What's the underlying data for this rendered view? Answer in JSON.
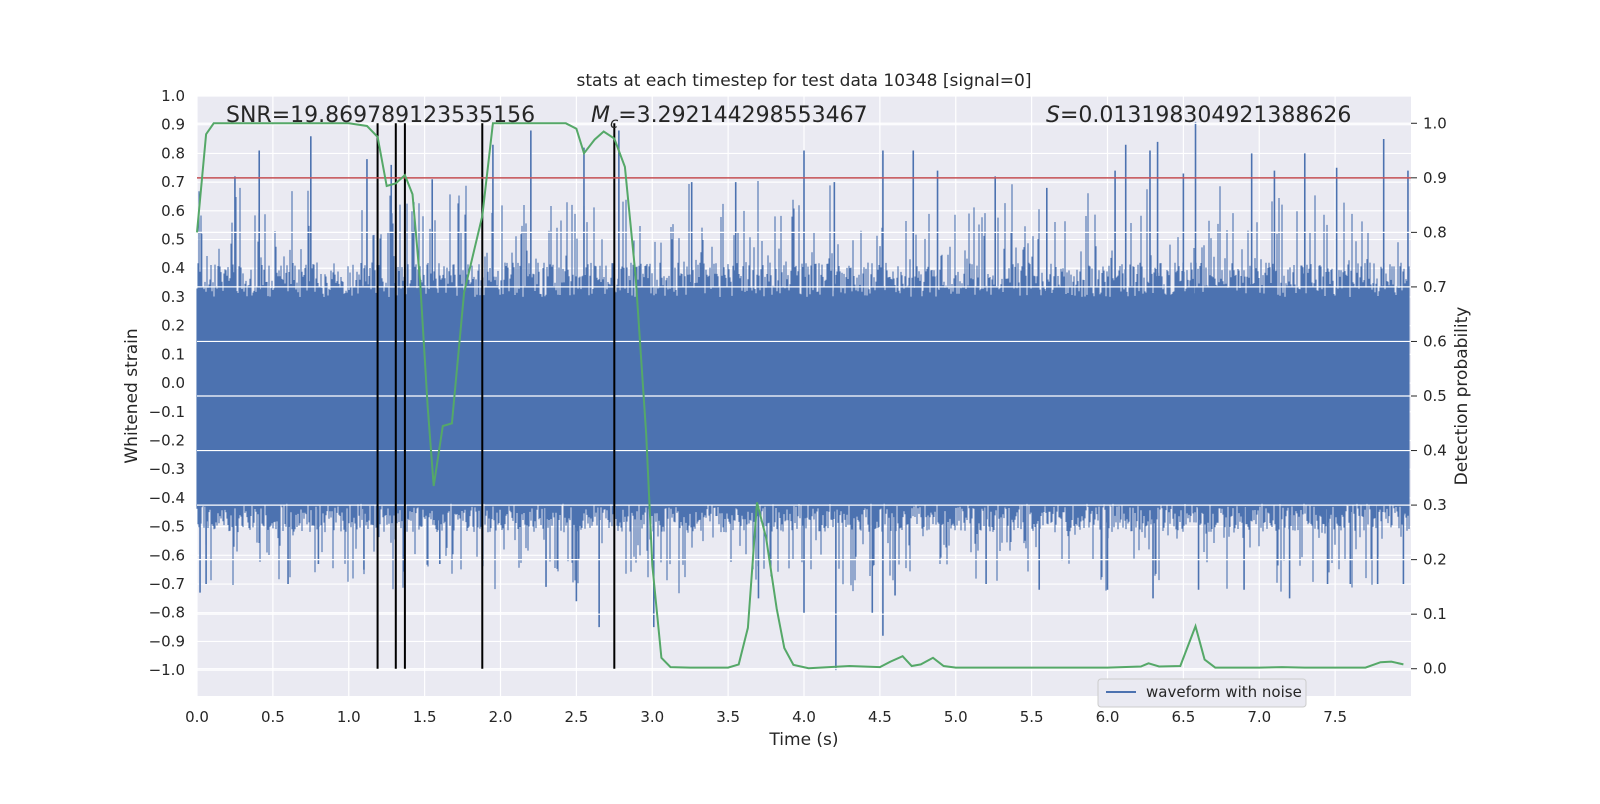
{
  "chart_data": {
    "type": "line",
    "title": "stats at each timestep for test data 10348 [signal=0]",
    "xlabel": "Time (s)",
    "ylabel_left": "Whitened strain",
    "ylabel_right": "Detection probability",
    "xlim": [
      0.0,
      8.0
    ],
    "ylim_left": [
      -1.09,
      1.0
    ],
    "ylim_right": [
      -0.05,
      1.05
    ],
    "x_ticks": [
      0.0,
      0.5,
      1.0,
      1.5,
      2.0,
      2.5,
      3.0,
      3.5,
      4.0,
      4.5,
      5.0,
      5.5,
      6.0,
      6.5,
      7.0,
      7.5
    ],
    "x_tick_labels": [
      "0.0",
      "0.5",
      "1.0",
      "1.5",
      "2.0",
      "2.5",
      "3.0",
      "3.5",
      "4.0",
      "4.5",
      "5.0",
      "5.5",
      "6.0",
      "6.5",
      "7.0",
      "7.5"
    ],
    "y_left_ticks": [
      1.0,
      0.9,
      0.8,
      0.7,
      0.6,
      0.5,
      0.4,
      0.3,
      0.2,
      0.1,
      0.0,
      -0.1,
      -0.2,
      -0.3,
      -0.4,
      -0.5,
      -0.6,
      -0.7,
      -0.8,
      -0.9,
      -1.0
    ],
    "y_left_tick_labels": [
      "1.0",
      "0.9",
      "0.8",
      "0.7",
      "0.6",
      "0.5",
      "0.4",
      "0.3",
      "0.2",
      "0.1",
      "0.0",
      "−0.1",
      "−0.2",
      "−0.3",
      "−0.4",
      "−0.5",
      "−0.6",
      "−0.7",
      "−0.8",
      "−0.9",
      "−1.0"
    ],
    "y_right_ticks": [
      1.0,
      0.9,
      0.8,
      0.7,
      0.6,
      0.5,
      0.4,
      0.3,
      0.2,
      0.1,
      0.0
    ],
    "y_right_tick_labels": [
      "1.0",
      "0.9",
      "0.8",
      "0.7",
      "0.6",
      "0.5",
      "0.4",
      "0.3",
      "0.2",
      "0.1",
      "0.0"
    ],
    "annotations": {
      "snr": "SNR=19.869789123535156",
      "mc_symbol": "M",
      "mc_subscript": "c",
      "mc_value": "=3.292144298553467",
      "s_symbol": "S",
      "s_value": "=0.013198304921388626"
    },
    "threshold": {
      "value": 0.9,
      "axis": "right",
      "color": "#c44e52"
    },
    "vertical_lines_x": [
      1.19,
      1.31,
      1.37,
      1.88,
      2.75
    ],
    "series": [
      {
        "name": "waveform with noise",
        "axis": "left",
        "color": "#4c72b0",
        "style": "dense noise band",
        "t_start": 0.0,
        "t_end": 7.99,
        "band_upper_typical": 0.3,
        "band_lower_typical": -0.42,
        "upper_spikes": [
          [
            0.03,
            0.52
          ],
          [
            0.25,
            0.72
          ],
          [
            0.41,
            0.81
          ],
          [
            0.75,
            0.86
          ],
          [
            1.12,
            0.78
          ],
          [
            1.28,
            0.76
          ],
          [
            1.55,
            0.71
          ],
          [
            1.95,
            0.83
          ],
          [
            2.2,
            0.88
          ],
          [
            2.55,
            0.82
          ],
          [
            2.78,
            0.88
          ],
          [
            3.26,
            0.7
          ],
          [
            3.55,
            0.7
          ],
          [
            4.0,
            0.81
          ],
          [
            4.2,
            0.7
          ],
          [
            4.52,
            0.81
          ],
          [
            4.72,
            0.81
          ],
          [
            4.88,
            0.74
          ],
          [
            5.26,
            0.72
          ],
          [
            5.6,
            0.68
          ],
          [
            6.05,
            0.74
          ],
          [
            6.12,
            0.83
          ],
          [
            6.28,
            0.81
          ],
          [
            6.33,
            0.84
          ],
          [
            6.5,
            0.73
          ],
          [
            6.58,
            0.91
          ],
          [
            6.95,
            0.8
          ],
          [
            7.1,
            0.74
          ],
          [
            7.3,
            0.8
          ],
          [
            7.51,
            0.75
          ],
          [
            7.82,
            0.85
          ],
          [
            7.98,
            0.74
          ]
        ],
        "lower_spikes": [
          [
            0.02,
            -0.73
          ],
          [
            0.06,
            -0.7
          ],
          [
            0.6,
            -0.7
          ],
          [
            0.8,
            -0.63
          ],
          [
            1.1,
            -0.65
          ],
          [
            1.6,
            -0.63
          ],
          [
            2.3,
            -0.71
          ],
          [
            2.5,
            -0.76
          ],
          [
            2.65,
            -0.85
          ],
          [
            3.01,
            -0.85
          ],
          [
            3.7,
            -0.75
          ],
          [
            4.0,
            -0.8
          ],
          [
            4.21,
            -1.0
          ],
          [
            4.45,
            -0.8
          ],
          [
            4.52,
            -0.88
          ],
          [
            4.6,
            -0.74
          ],
          [
            5.2,
            -0.7
          ],
          [
            5.55,
            -0.72
          ],
          [
            6.0,
            -0.72
          ],
          [
            6.3,
            -0.75
          ],
          [
            6.6,
            -0.72
          ],
          [
            6.9,
            -0.72
          ],
          [
            7.2,
            -0.75
          ],
          [
            7.45,
            -0.7
          ],
          [
            7.6,
            -0.7
          ],
          [
            7.78,
            -0.7
          ],
          [
            7.95,
            -0.7
          ]
        ]
      },
      {
        "name": "detection probability",
        "axis": "right",
        "color": "#55a868",
        "points": [
          [
            0.0,
            0.8
          ],
          [
            0.06,
            0.98
          ],
          [
            0.11,
            1.0
          ],
          [
            0.5,
            1.0
          ],
          [
            1.0,
            1.0
          ],
          [
            1.12,
            0.995
          ],
          [
            1.19,
            0.975
          ],
          [
            1.25,
            0.885
          ],
          [
            1.31,
            0.89
          ],
          [
            1.37,
            0.905
          ],
          [
            1.42,
            0.87
          ],
          [
            1.47,
            0.71
          ],
          [
            1.52,
            0.48
          ],
          [
            1.56,
            0.335
          ],
          [
            1.62,
            0.445
          ],
          [
            1.68,
            0.45
          ],
          [
            1.76,
            0.69
          ],
          [
            1.88,
            0.83
          ],
          [
            1.95,
            1.0
          ],
          [
            2.0,
            1.0
          ],
          [
            2.43,
            1.0
          ],
          [
            2.5,
            0.99
          ],
          [
            2.55,
            0.945
          ],
          [
            2.62,
            0.97
          ],
          [
            2.68,
            0.985
          ],
          [
            2.75,
            0.972
          ],
          [
            2.82,
            0.92
          ],
          [
            2.89,
            0.72
          ],
          [
            2.96,
            0.43
          ],
          [
            3.0,
            0.19
          ],
          [
            3.06,
            0.02
          ],
          [
            3.12,
            0.003
          ],
          [
            3.25,
            0.002
          ],
          [
            3.5,
            0.002
          ],
          [
            3.57,
            0.008
          ],
          [
            3.63,
            0.075
          ],
          [
            3.69,
            0.305
          ],
          [
            3.75,
            0.24
          ],
          [
            3.82,
            0.11
          ],
          [
            3.87,
            0.038
          ],
          [
            3.93,
            0.007
          ],
          [
            4.03,
            0.001
          ],
          [
            4.3,
            0.005
          ],
          [
            4.5,
            0.003
          ],
          [
            4.57,
            0.013
          ],
          [
            4.65,
            0.023
          ],
          [
            4.71,
            0.005
          ],
          [
            4.77,
            0.008
          ],
          [
            4.85,
            0.02
          ],
          [
            4.92,
            0.005
          ],
          [
            5.0,
            0.002
          ],
          [
            5.5,
            0.002
          ],
          [
            6.0,
            0.002
          ],
          [
            6.22,
            0.004
          ],
          [
            6.27,
            0.01
          ],
          [
            6.34,
            0.004
          ],
          [
            6.48,
            0.005
          ],
          [
            6.58,
            0.078
          ],
          [
            6.64,
            0.017
          ],
          [
            6.71,
            0.002
          ],
          [
            7.0,
            0.002
          ],
          [
            7.15,
            0.003
          ],
          [
            7.3,
            0.002
          ],
          [
            7.7,
            0.002
          ],
          [
            7.8,
            0.012
          ],
          [
            7.87,
            0.013
          ],
          [
            7.95,
            0.008
          ]
        ]
      }
    ],
    "legend": {
      "label": "waveform with noise",
      "placement": "lower-right"
    }
  }
}
